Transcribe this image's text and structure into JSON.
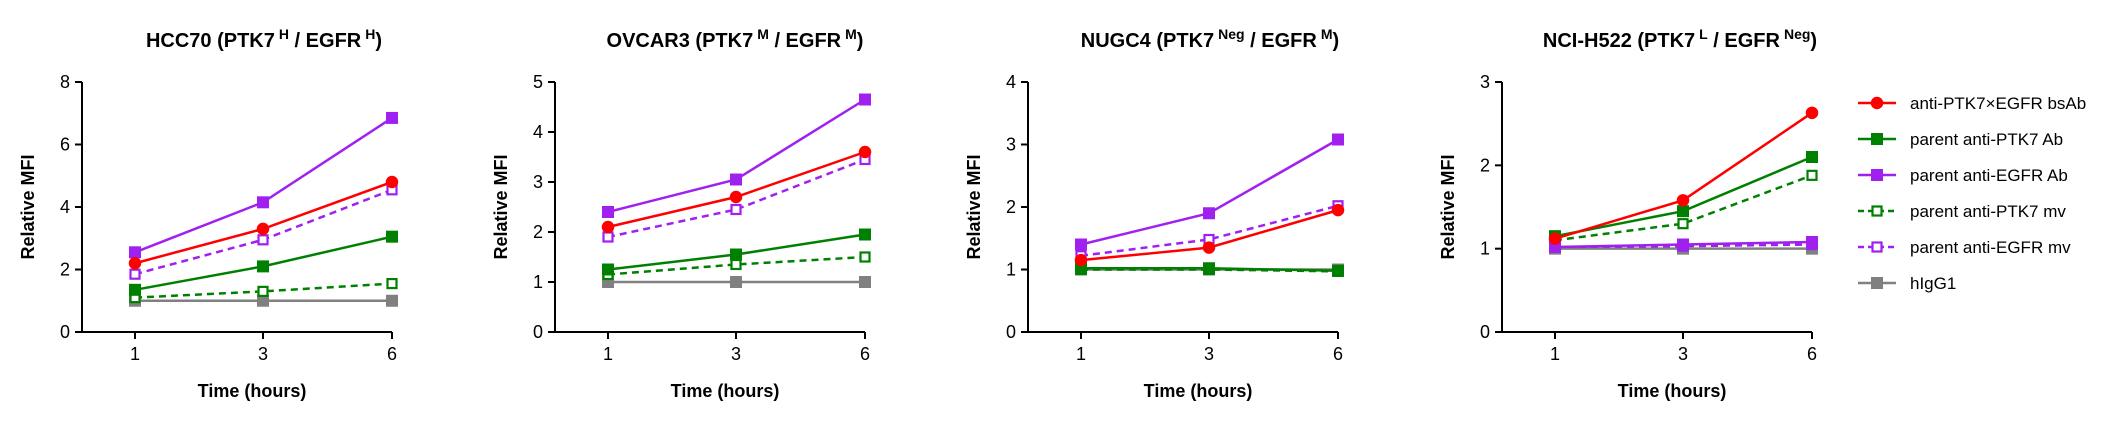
{
  "colors": {
    "bsab": "#ff0000",
    "ptk7": "#008000",
    "egfr": "#a020f0",
    "higg1": "#808080"
  },
  "chart_data": [
    {
      "type": "line",
      "title_main": "HCC70 (PTK7",
      "title_sup1": "H",
      "title_mid": " / EGFR",
      "title_sup2": "H",
      "title_end": ")",
      "xlabel": "Time (hours)",
      "ylabel": "Relative MFI",
      "x": [
        1,
        3,
        6
      ],
      "ylim": [
        0,
        8
      ],
      "yticks": [
        0,
        2,
        4,
        6,
        8
      ],
      "series": [
        {
          "key": "bsab",
          "values": [
            2.2,
            3.3,
            4.8
          ]
        },
        {
          "key": "ptk7_ab",
          "values": [
            1.35,
            2.1,
            3.05
          ]
        },
        {
          "key": "egfr_ab",
          "values": [
            2.55,
            4.15,
            6.85
          ]
        },
        {
          "key": "ptk7_mv",
          "values": [
            1.1,
            1.3,
            1.55
          ]
        },
        {
          "key": "egfr_mv",
          "values": [
            1.85,
            2.95,
            4.55
          ]
        },
        {
          "key": "higg1",
          "values": [
            1.0,
            1.0,
            1.0
          ]
        }
      ]
    },
    {
      "type": "line",
      "title_main": "OVCAR3 (PTK7",
      "title_sup1": "M",
      "title_mid": " / EGFR",
      "title_sup2": "M",
      "title_end": ")",
      "xlabel": "Time (hours)",
      "ylabel": "Relative MFI",
      "x": [
        1,
        3,
        6
      ],
      "ylim": [
        0,
        5
      ],
      "yticks": [
        0,
        1,
        2,
        3,
        4,
        5
      ],
      "series": [
        {
          "key": "bsab",
          "values": [
            2.1,
            2.7,
            3.6
          ]
        },
        {
          "key": "ptk7_ab",
          "values": [
            1.25,
            1.55,
            1.95
          ]
        },
        {
          "key": "egfr_ab",
          "values": [
            2.4,
            3.05,
            4.65
          ]
        },
        {
          "key": "ptk7_mv",
          "values": [
            1.15,
            1.35,
            1.5
          ]
        },
        {
          "key": "egfr_mv",
          "values": [
            1.9,
            2.45,
            3.45
          ]
        },
        {
          "key": "higg1",
          "values": [
            1.0,
            1.0,
            1.0
          ]
        }
      ]
    },
    {
      "type": "line",
      "title_main": "NUGC4 (PTK7",
      "title_sup1": "Neg",
      "title_mid": " / EGFR",
      "title_sup2": "M",
      "title_end": ")",
      "xlabel": "Time (hours)",
      "ylabel": "Relative MFI",
      "x": [
        1,
        3,
        6
      ],
      "ylim": [
        0,
        4
      ],
      "yticks": [
        0,
        1,
        2,
        3,
        4
      ],
      "series": [
        {
          "key": "bsab",
          "values": [
            1.15,
            1.35,
            1.95
          ]
        },
        {
          "key": "ptk7_ab",
          "values": [
            1.02,
            1.02,
            0.98
          ]
        },
        {
          "key": "egfr_ab",
          "values": [
            1.4,
            1.9,
            3.08
          ]
        },
        {
          "key": "ptk7_mv",
          "values": [
            1.0,
            1.0,
            0.97
          ]
        },
        {
          "key": "egfr_mv",
          "values": [
            1.22,
            1.48,
            2.02
          ]
        },
        {
          "key": "higg1",
          "values": [
            1.0,
            1.0,
            1.0
          ]
        }
      ]
    },
    {
      "type": "line",
      "title_main": "NCI-H522 (PTK7",
      "title_sup1": "L",
      "title_mid": " / EGFR",
      "title_sup2": "Neg",
      "title_end": ")",
      "xlabel": "Time (hours)",
      "ylabel": "Relative MFI",
      "x": [
        1,
        3,
        6
      ],
      "ylim": [
        0,
        3
      ],
      "yticks": [
        0,
        1,
        2,
        3
      ],
      "series": [
        {
          "key": "bsab",
          "values": [
            1.12,
            1.58,
            2.63
          ]
        },
        {
          "key": "ptk7_ab",
          "values": [
            1.15,
            1.45,
            2.1
          ]
        },
        {
          "key": "egfr_ab",
          "values": [
            1.02,
            1.05,
            1.08
          ]
        },
        {
          "key": "ptk7_mv",
          "values": [
            1.1,
            1.3,
            1.88
          ]
        },
        {
          "key": "egfr_mv",
          "values": [
            1.02,
            1.03,
            1.05
          ]
        },
        {
          "key": "higg1",
          "values": [
            1.0,
            1.0,
            1.0
          ]
        }
      ]
    }
  ],
  "legend": {
    "placement": "right",
    "items": [
      {
        "key": "bsab",
        "label": "anti-PTK7×EGFR bsAb",
        "color": "#ff0000",
        "marker": "circle",
        "filled": true,
        "dashed": false
      },
      {
        "key": "ptk7_ab",
        "label": "parent anti-PTK7 Ab",
        "color": "#008000",
        "marker": "square",
        "filled": true,
        "dashed": false
      },
      {
        "key": "egfr_ab",
        "label": "parent anti-EGFR Ab",
        "color": "#a020f0",
        "marker": "square",
        "filled": true,
        "dashed": false
      },
      {
        "key": "ptk7_mv",
        "label": "parent anti-PTK7 mv",
        "color": "#008000",
        "marker": "square",
        "filled": false,
        "dashed": true
      },
      {
        "key": "egfr_mv",
        "label": "parent anti-EGFR mv",
        "color": "#a020f0",
        "marker": "square",
        "filled": false,
        "dashed": true
      },
      {
        "key": "higg1",
        "label": "hIgG1",
        "color": "#808080",
        "marker": "square",
        "filled": true,
        "dashed": false
      }
    ]
  }
}
